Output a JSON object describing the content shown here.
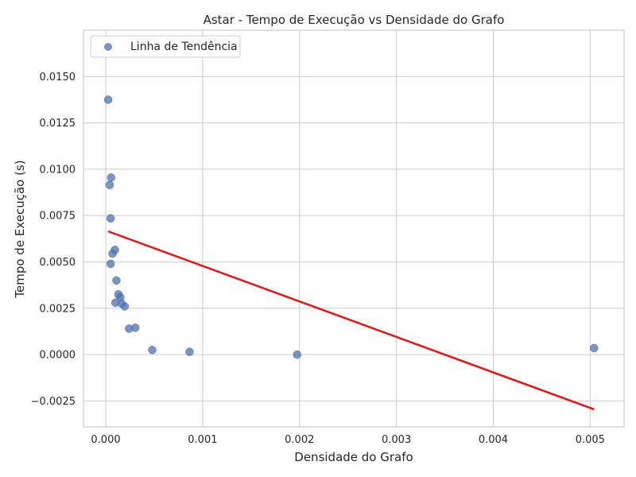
{
  "chart_data": {
    "type": "scatter",
    "title": "Astar - Tempo de Execução vs Densidade do Grafo",
    "xlabel": "Densidade do Grafo",
    "ylabel": "Tempo de Execução (s)",
    "xlim": [
      -0.00023,
      0.00535
    ],
    "ylim": [
      -0.0039,
      0.0175
    ],
    "xticks": [
      0.0,
      0.001,
      0.002,
      0.003,
      0.004,
      0.005
    ],
    "xtick_labels": [
      "0.000",
      "0.001",
      "0.002",
      "0.003",
      "0.004",
      "0.005"
    ],
    "yticks": [
      -0.0025,
      0.0,
      0.0025,
      0.005,
      0.0075,
      0.01,
      0.0125,
      0.015
    ],
    "ytick_labels": [
      "−0.0025",
      "0.0000",
      "0.0025",
      "0.0050",
      "0.0075",
      "0.0100",
      "0.0125",
      "0.0150"
    ],
    "grid": true,
    "legend_position": "top-left",
    "legend_label": "Linha de Tendência",
    "point_color": "#4c72b0",
    "trend_color": "#ee1111",
    "points": [
      {
        "x": 2.5e-05,
        "y": 0.0165
      },
      {
        "x": 2.5e-05,
        "y": 0.01375
      },
      {
        "x": 5.5e-05,
        "y": 0.00955
      },
      {
        "x": 4e-05,
        "y": 0.00915
      },
      {
        "x": 5e-05,
        "y": 0.00735
      },
      {
        "x": 9.5e-05,
        "y": 0.00565
      },
      {
        "x": 7e-05,
        "y": 0.00545
      },
      {
        "x": 5e-05,
        "y": 0.0049
      },
      {
        "x": 0.00011,
        "y": 0.004
      },
      {
        "x": 0.00013,
        "y": 0.00325
      },
      {
        "x": 0.00015,
        "y": 0.0031
      },
      {
        "x": 0.0001,
        "y": 0.0028
      },
      {
        "x": 0.000165,
        "y": 0.00275
      },
      {
        "x": 0.000195,
        "y": 0.0026
      },
      {
        "x": 0.00024,
        "y": 0.0014
      },
      {
        "x": 0.000305,
        "y": 0.00145
      },
      {
        "x": 0.00048,
        "y": 0.00025
      },
      {
        "x": 0.000865,
        "y": 0.00015
      },
      {
        "x": 0.001975,
        "y": 0.0
      },
      {
        "x": 0.00504,
        "y": 0.00035
      }
    ],
    "trend_line": [
      {
        "x": 2.5e-05,
        "y": 0.00665
      },
      {
        "x": 0.00504,
        "y": -0.00295
      }
    ]
  }
}
